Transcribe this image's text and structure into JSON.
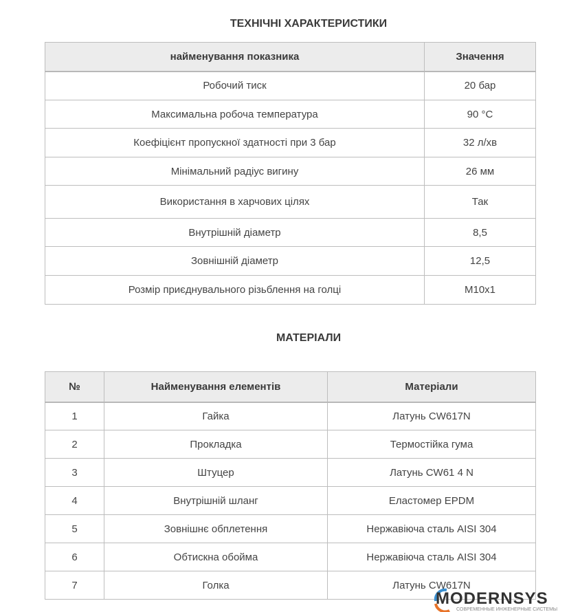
{
  "specs": {
    "title": "ТЕХНІЧНІ ХАРАКТЕРИСТИКИ",
    "headers": [
      "найменування показника",
      "Значення"
    ],
    "rows": [
      [
        "Робочий тиск",
        "20 бар"
      ],
      [
        "Максимальна робоча температура",
        "90 °C"
      ],
      [
        "Коефіцієнт пропускної здатності при 3 бар",
        "32 л/хв"
      ],
      [
        "Мінімальний радіус вигину",
        "26 мм"
      ],
      [
        "Використання в харчових цілях",
        "Так"
      ],
      [
        "Внутрішній діаметр",
        "8,5"
      ],
      [
        "Зовнішній діаметр",
        "12,5"
      ],
      [
        "Розмір приєднувального різьблення на голці",
        "M10x1"
      ]
    ]
  },
  "materials": {
    "title": "МАТЕРІАЛИ",
    "headers": [
      "№",
      "Найменування елементів",
      "Матеріали"
    ],
    "rows": [
      [
        "1",
        "Гайка",
        "Латунь CW617N"
      ],
      [
        "2",
        "Прокладка",
        "Термостійка гума"
      ],
      [
        "3",
        "Штуцер",
        "Латунь CW61 4 N"
      ],
      [
        "4",
        "Внутрішній шланг",
        "Еластомер EPDM"
      ],
      [
        "5",
        "Зовнішнє обплетення",
        "Нержавіюча сталь AISI 304"
      ],
      [
        "6",
        "Обтискна обойма",
        "Нержавіюча сталь AISI 304"
      ],
      [
        "7",
        "Голка",
        "Латунь CW617N"
      ]
    ]
  },
  "logo": {
    "name": "MODERNSYS",
    "tagline": "СОВРЕМЕННЫЕ ИНЖЕНЕРНЫЕ СИСТЕМЫ",
    "accent": "#3a8fd0",
    "accent2": "#e8742a"
  }
}
